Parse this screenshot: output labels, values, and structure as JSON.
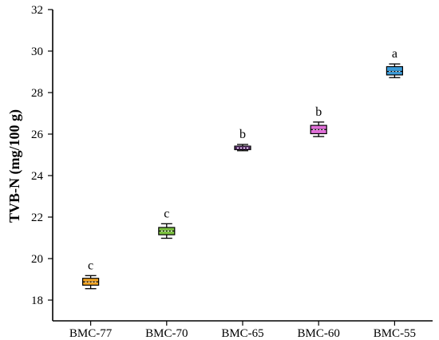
{
  "chart_data": {
    "type": "box",
    "ylabel": "TVB-N (mg/100 g)",
    "xlabel": "",
    "ylim": [
      17,
      32
    ],
    "yticks": [
      18,
      20,
      22,
      24,
      26,
      28,
      30,
      32
    ],
    "categories": [
      "BMC-77",
      "BMC-70",
      "BMC-65",
      "BMC-60",
      "BMC-55"
    ],
    "boxes": [
      {
        "category": "BMC-77",
        "min": 18.55,
        "q1": 18.72,
        "median": 18.88,
        "q3": 19.05,
        "max": 19.18,
        "label": "c",
        "color": "#f5a623"
      },
      {
        "category": "BMC-70",
        "min": 20.98,
        "q1": 21.15,
        "median": 21.33,
        "q3": 21.5,
        "max": 21.68,
        "label": "c",
        "color": "#7dc242"
      },
      {
        "category": "BMC-65",
        "min": 25.2,
        "q1": 25.25,
        "median": 25.33,
        "q3": 25.42,
        "max": 25.5,
        "label": "b",
        "color": "#9b59b6"
      },
      {
        "category": "BMC-60",
        "min": 25.88,
        "q1": 26.02,
        "median": 26.22,
        "q3": 26.42,
        "max": 26.58,
        "label": "b",
        "color": "#e06fd8"
      },
      {
        "category": "BMC-55",
        "min": 28.72,
        "q1": 28.85,
        "median": 29.02,
        "q3": 29.25,
        "max": 29.38,
        "label": "a",
        "color": "#3a9bd9"
      }
    ]
  }
}
